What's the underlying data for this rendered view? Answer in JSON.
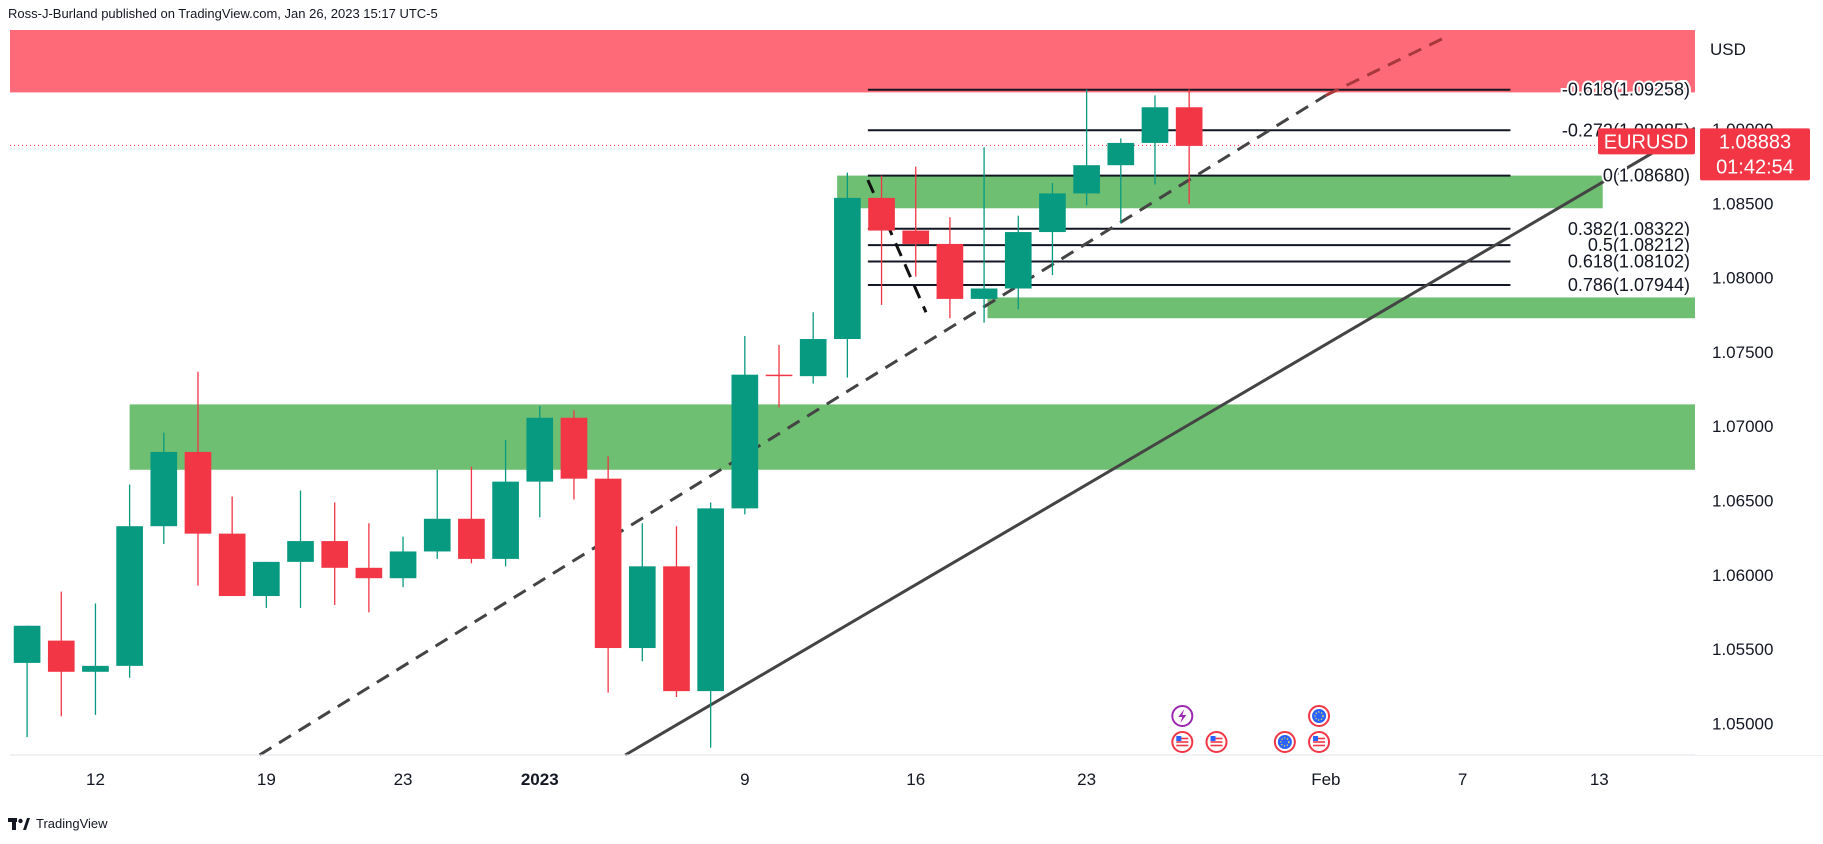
{
  "header": {
    "publisher": "Ross-J-Burland published on TradingView.com, Jan 26, 2023 15:17 UTC-5"
  },
  "footer": {
    "brand": "TradingView"
  },
  "chart_data": {
    "type": "candlestick",
    "symbol": "EURUSD",
    "currency": "USD",
    "last_price": "1.08883",
    "countdown": "01:42:54",
    "ylim": [
      1.0478,
      1.0966
    ],
    "x_index_range": [
      -0.5,
      48.8
    ],
    "y_ticks": [
      "1.05000",
      "1.05500",
      "1.06000",
      "1.06500",
      "1.07000",
      "1.07500",
      "1.08000",
      "1.08500",
      "1.09000"
    ],
    "x_ticks": [
      {
        "i": 2,
        "label": "12"
      },
      {
        "i": 7,
        "label": "19"
      },
      {
        "i": 11,
        "label": "23"
      },
      {
        "i": 15,
        "label": "2023",
        "bold": true
      },
      {
        "i": 21,
        "label": "9"
      },
      {
        "i": 26,
        "label": "16"
      },
      {
        "i": 31,
        "label": "23"
      },
      {
        "i": 38,
        "label": "Feb"
      },
      {
        "i": 42,
        "label": "7"
      },
      {
        "i": 46,
        "label": "13"
      }
    ],
    "candles": [
      {
        "o": 1.054,
        "h": 1.0565,
        "l": 1.049,
        "c": 1.0565
      },
      {
        "o": 1.0555,
        "h": 1.0588,
        "l": 1.0504,
        "c": 1.0534
      },
      {
        "o": 1.0534,
        "h": 1.058,
        "l": 1.0505,
        "c": 1.0538
      },
      {
        "o": 1.0538,
        "h": 1.066,
        "l": 1.053,
        "c": 1.0632
      },
      {
        "o": 1.0632,
        "h": 1.0695,
        "l": 1.062,
        "c": 1.0682
      },
      {
        "o": 1.0682,
        "h": 1.0736,
        "l": 1.0592,
        "c": 1.0627
      },
      {
        "o": 1.0627,
        "h": 1.0652,
        "l": 1.0585,
        "c": 1.0585
      },
      {
        "o": 1.0585,
        "h": 1.0608,
        "l": 1.0577,
        "c": 1.0608
      },
      {
        "o": 1.0608,
        "h": 1.0656,
        "l": 1.0577,
        "c": 1.0622
      },
      {
        "o": 1.0622,
        "h": 1.0648,
        "l": 1.0579,
        "c": 1.0604
      },
      {
        "o": 1.0604,
        "h": 1.0634,
        "l": 1.0574,
        "c": 1.0597
      },
      {
        "o": 1.0597,
        "h": 1.0625,
        "l": 1.0591,
        "c": 1.0615
      },
      {
        "o": 1.0615,
        "h": 1.067,
        "l": 1.061,
        "c": 1.0637
      },
      {
        "o": 1.0637,
        "h": 1.0672,
        "l": 1.0607,
        "c": 1.061
      },
      {
        "o": 1.061,
        "h": 1.069,
        "l": 1.0605,
        "c": 1.0662
      },
      {
        "o": 1.0662,
        "h": 1.0713,
        "l": 1.0638,
        "c": 1.0705
      },
      {
        "o": 1.0705,
        "h": 1.071,
        "l": 1.065,
        "c": 1.0664
      },
      {
        "o": 1.0664,
        "h": 1.0679,
        "l": 1.052,
        "c": 1.055
      },
      {
        "o": 1.055,
        "h": 1.0634,
        "l": 1.0541,
        "c": 1.0605
      },
      {
        "o": 1.0605,
        "h": 1.0632,
        "l": 1.0517,
        "c": 1.0521
      },
      {
        "o": 1.0521,
        "h": 1.0648,
        "l": 1.0483,
        "c": 1.0644
      },
      {
        "o": 1.0644,
        "h": 1.076,
        "l": 1.064,
        "c": 1.0734
      },
      {
        "o": 1.0734,
        "h": 1.0754,
        "l": 1.0712,
        "c": 1.0733
      },
      {
        "o": 1.0733,
        "h": 1.0776,
        "l": 1.0728,
        "c": 1.0758
      },
      {
        "o": 1.0758,
        "h": 1.087,
        "l": 1.0732,
        "c": 1.0853
      },
      {
        "o": 1.0853,
        "h": 1.0868,
        "l": 1.0781,
        "c": 1.0831
      },
      {
        "o": 1.0831,
        "h": 1.0874,
        "l": 1.08,
        "c": 1.0822
      },
      {
        "o": 1.0822,
        "h": 1.084,
        "l": 1.0772,
        "c": 1.0785
      },
      {
        "o": 1.0785,
        "h": 1.0887,
        "l": 1.0769,
        "c": 1.0792
      },
      {
        "o": 1.0792,
        "h": 1.0841,
        "l": 1.0778,
        "c": 1.083
      },
      {
        "o": 1.083,
        "h": 1.0863,
        "l": 1.0801,
        "c": 1.0856
      },
      {
        "o": 1.0856,
        "h": 1.0926,
        "l": 1.0848,
        "c": 1.0875
      },
      {
        "o": 1.0875,
        "h": 1.0893,
        "l": 1.0836,
        "c": 1.089
      },
      {
        "o": 1.089,
        "h": 1.0922,
        "l": 1.0862,
        "c": 1.0914
      },
      {
        "o": 1.0914,
        "h": 1.0926,
        "l": 1.0849,
        "c": 1.0888
      }
    ],
    "zones": {
      "resistance": {
        "y_top": 1.0966,
        "y_bottom": 1.0924,
        "color": "#ff6a78"
      },
      "supports": [
        {
          "i_start": 3.0,
          "i_end": 48.8,
          "y_top": 1.0714,
          "y_bottom": 1.067
        },
        {
          "i_start": 23.7,
          "i_end": 46.1,
          "y_top": 1.0868,
          "y_bottom": 1.0846
        },
        {
          "i_start": 28.1,
          "i_end": 48.8,
          "y_top": 1.0786,
          "y_bottom": 1.0772
        }
      ],
      "support_color": "#6fbf73"
    },
    "fib": {
      "i_start": 24.6,
      "i_end": 43.4,
      "levels": [
        {
          "label": "-0.618(1.09258)",
          "price": 1.09258
        },
        {
          "label": "-0.272(1.08985)",
          "price": 1.08985
        },
        {
          "label": "0(1.08680)",
          "price": 1.0868
        },
        {
          "label": "0.382(1.08322)",
          "price": 1.08322
        },
        {
          "label": "0.5(1.08212)",
          "price": 1.08212
        },
        {
          "label": "0.618(1.08102)",
          "price": 1.08102
        },
        {
          "label": "0.786(1.07944)",
          "price": 1.07944
        }
      ]
    },
    "trendlines": [
      {
        "style": "solid",
        "color": "#444444",
        "p1": {
          "i": 17.5,
          "price": 1.0478
        },
        "p2": {
          "i": 48.8,
          "price": 1.09
        }
      },
      {
        "style": "dashed",
        "color": "#444444",
        "p1": {
          "i": 6.8,
          "price": 1.0478
        },
        "p2": {
          "i": 38.0,
          "price": 1.0922
        }
      },
      {
        "style": "dashed",
        "color": "#a83a3a",
        "p1": {
          "i": 38.0,
          "price": 1.0922
        },
        "p2": {
          "i": 41.4,
          "price": 1.096
        }
      },
      {
        "style": "dashed",
        "color": "#111111",
        "p1": {
          "i": 24.6,
          "price": 1.0865
        },
        "p2": {
          "i": 26.3,
          "price": 1.0776
        }
      }
    ],
    "event_icons": [
      {
        "i": 33.8,
        "row": 0,
        "type": "bolt"
      },
      {
        "i": 33.8,
        "row": 1,
        "type": "us-flag"
      },
      {
        "i": 34.8,
        "row": 1,
        "type": "us-flag"
      },
      {
        "i": 36.8,
        "row": 1,
        "type": "eu-flag"
      },
      {
        "i": 37.8,
        "row": 0,
        "type": "eu-flag"
      },
      {
        "i": 37.8,
        "row": 1,
        "type": "us-flag"
      }
    ],
    "colors": {
      "bull": "#089981",
      "bear": "#f23645",
      "grid": "#f0f3fa",
      "axis": "#131722",
      "price_line": "#f23645"
    }
  }
}
